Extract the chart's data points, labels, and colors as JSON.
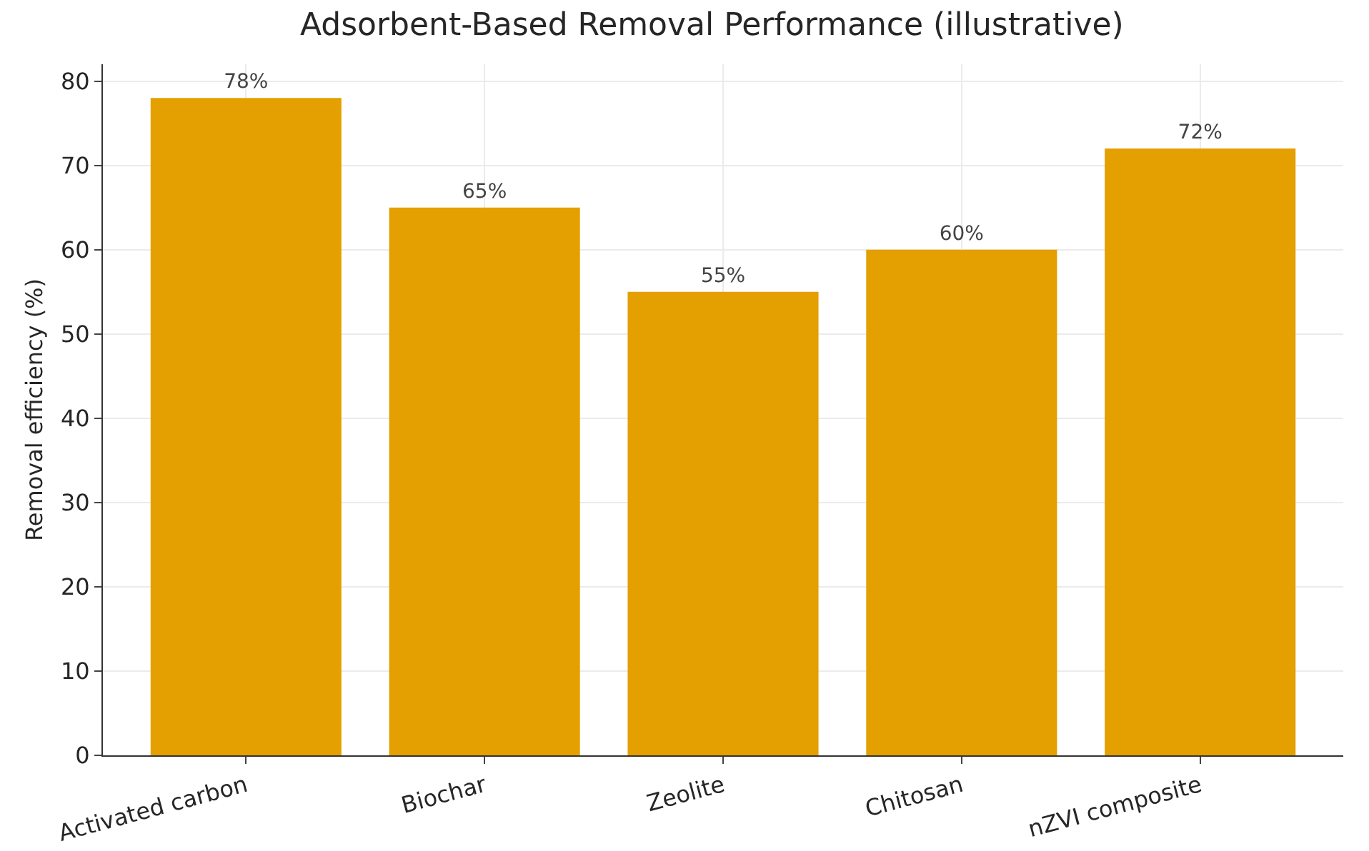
{
  "chart_data": {
    "type": "bar",
    "title": "Adsorbent-Based Removal Performance (illustrative)",
    "ylabel": "Removal efficiency (%)",
    "categories": [
      "Activated carbon",
      "Biochar",
      "Zeolite",
      "Chitosan",
      "nZVI composite"
    ],
    "values": [
      78,
      65,
      55,
      60,
      72
    ],
    "value_labels": [
      "78%",
      "65%",
      "55%",
      "60%",
      "72%"
    ],
    "color": "#e49f00",
    "ylim": [
      0,
      82
    ],
    "yticks": [
      0,
      10,
      20,
      30,
      40,
      50,
      60,
      70,
      80
    ],
    "grid": true
  }
}
